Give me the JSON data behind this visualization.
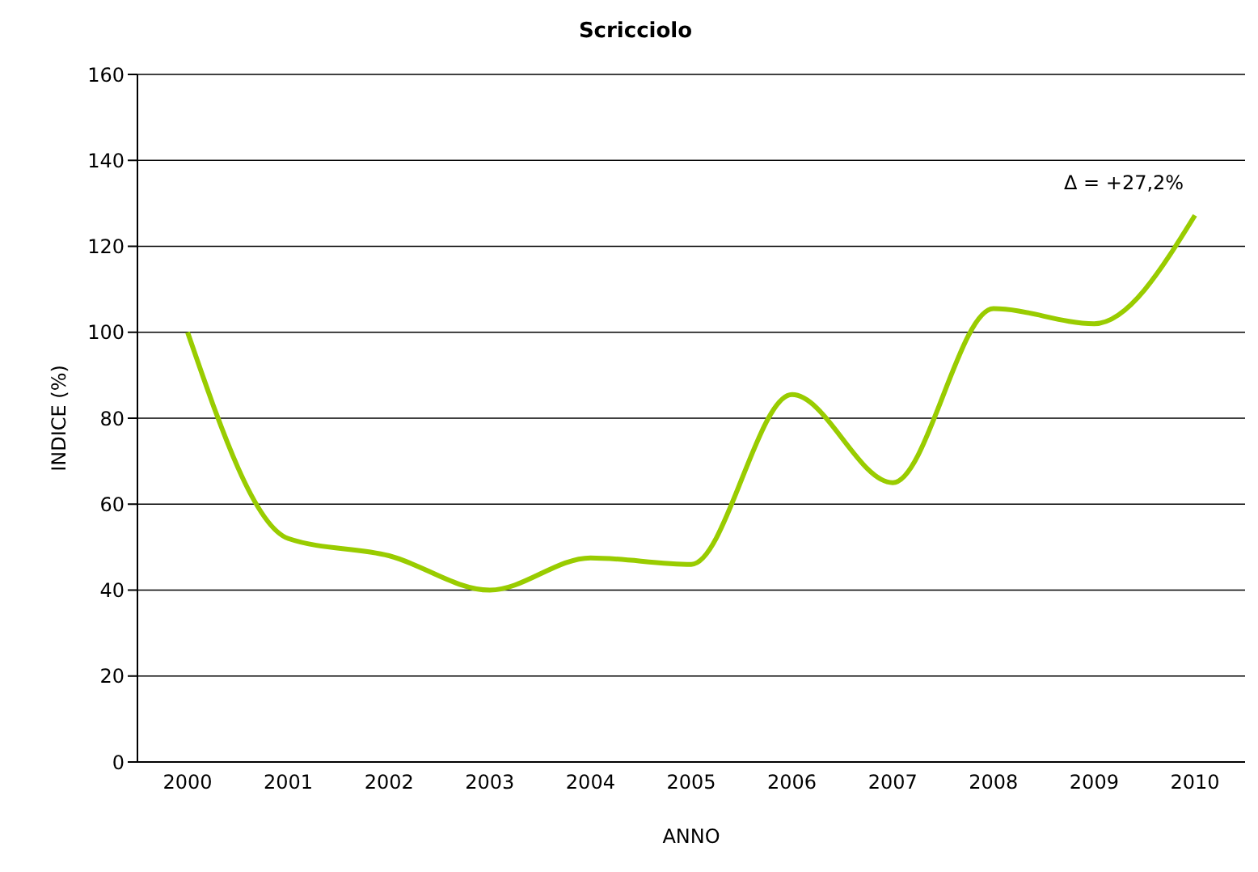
{
  "chart_data": {
    "type": "line",
    "title": "Scricciolo",
    "xlabel": "ANNO",
    "ylabel": "INDICE (%)",
    "categories": [
      "2000",
      "2001",
      "2002",
      "2003",
      "2004",
      "2005",
      "2006",
      "2007",
      "2008",
      "2009",
      "2010"
    ],
    "series": [
      {
        "color": "#99cc00",
        "values": [
          100,
          52,
          48,
          40,
          47.5,
          46,
          85.5,
          65,
          105.5,
          102,
          127.2
        ]
      }
    ],
    "ylim": [
      0,
      160
    ],
    "yticks": [
      0,
      20,
      40,
      60,
      80,
      100,
      120,
      140,
      160
    ],
    "grid": "y",
    "marker": "none",
    "line_style": "solid",
    "annotations": [
      "Δ = +27,2%"
    ]
  }
}
